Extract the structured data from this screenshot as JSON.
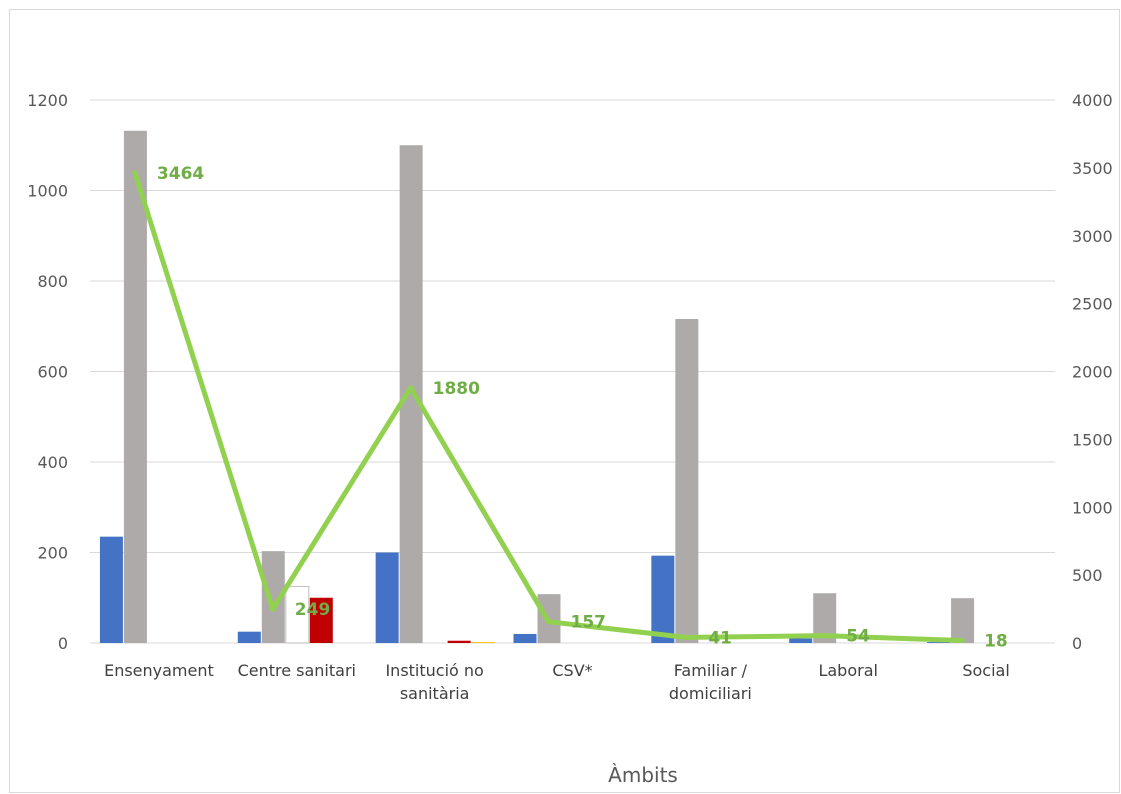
{
  "chart_data": {
    "type": "bar",
    "title": "",
    "xlabel": "Àmbits",
    "ylabel": "",
    "ylim": [
      0,
      1200
    ],
    "y_ticks": [
      "0",
      "200",
      "400",
      "600",
      "800",
      "1000",
      "1200"
    ],
    "y2lim": [
      0,
      4000
    ],
    "y2_ticks": [
      "0",
      "500",
      "1000",
      "1500",
      "2000",
      "2500",
      "3000",
      "3500",
      "4000"
    ],
    "grid": true,
    "legend": "none",
    "categories": [
      "Ensenyament",
      "Centre sanitari",
      "Institució no sanitària",
      "CSV*",
      "Familiar / domiciliari",
      "Laboral",
      "Social"
    ],
    "category_lines": [
      [
        "Ensenyament"
      ],
      [
        "Centre sanitari"
      ],
      [
        "Institució no",
        "sanitària"
      ],
      [
        "CSV*"
      ],
      [
        "Familiar /",
        "domiciliari"
      ],
      [
        "Laboral"
      ],
      [
        "Social"
      ]
    ],
    "series": [
      {
        "color": "#4472c4",
        "axis": "primary",
        "type": "bar",
        "values": [
          235,
          25,
          200,
          20,
          193,
          10,
          2
        ]
      },
      {
        "color": "#aeaaaa",
        "axis": "primary",
        "type": "bar",
        "values": [
          1132,
          203,
          1100,
          108,
          716,
          110,
          99
        ]
      },
      {
        "color": "#ffffff",
        "stroke": "#bfbfbf",
        "axis": "primary",
        "type": "bar",
        "values": [
          0,
          125,
          0,
          0,
          0,
          0,
          0
        ]
      },
      {
        "color": "#c00000",
        "axis": "primary",
        "type": "bar",
        "values": [
          0,
          100,
          5,
          0,
          0,
          0,
          0
        ]
      },
      {
        "color": "#ffc000",
        "axis": "primary",
        "type": "bar",
        "values": [
          0,
          0,
          2,
          0,
          0,
          0,
          0
        ]
      },
      {
        "color": "#92d050",
        "axis": "secondary",
        "type": "line",
        "values": [
          3464,
          249,
          1880,
          157,
          41,
          54,
          18
        ],
        "labels": [
          "3464",
          "249",
          "1880",
          "157",
          "41",
          "54",
          "18"
        ]
      }
    ]
  }
}
